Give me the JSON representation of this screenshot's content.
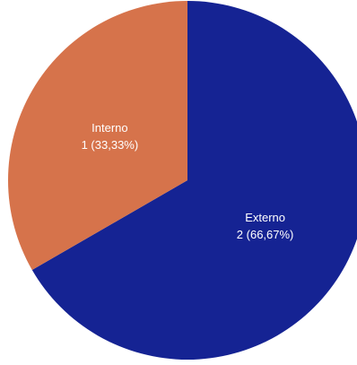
{
  "chart_data": {
    "type": "pie",
    "title": "",
    "slices": [
      {
        "category": "Externo",
        "value": 2,
        "percent_label": "2 (66,67%)",
        "color": "#152393"
      },
      {
        "category": "Interno",
        "value": 1,
        "percent_label": "1 (33,33%)",
        "color": "#d6734b"
      }
    ],
    "start_angle_deg": 0,
    "direction": "clockwise",
    "legend": "none"
  }
}
